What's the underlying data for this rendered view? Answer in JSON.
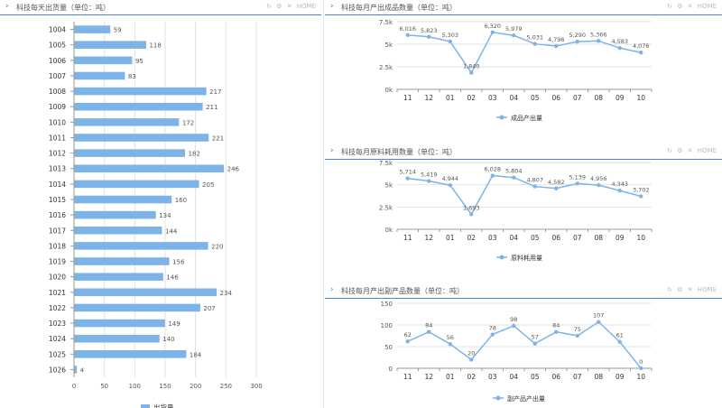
{
  "panels": {
    "daily": {
      "title": "科技每天出货量（单位：吨）",
      "tools": [
        "↻",
        "⚙",
        "✕",
        "HOME"
      ]
    },
    "products": {
      "title": "科技每月产出成品数量（单位：吨）",
      "tools": [
        "↻",
        "⚙",
        "✕",
        "HOME"
      ]
    },
    "materials": {
      "title": "科技每月原料耗用数量（单位：吨）",
      "tools": [
        "↻",
        "⚙",
        "✕",
        "HOME"
      ]
    },
    "byproducts": {
      "title": "科技每月产出副产品数量（单位：吨）",
      "tools": [
        "↻",
        "⚙",
        "✕",
        "HOME"
      ]
    }
  },
  "chart_data": [
    {
      "type": "bar",
      "orientation": "horizontal",
      "categories": [
        "1004",
        "1005",
        "1006",
        "1007",
        "1008",
        "1009",
        "1010",
        "1011",
        "1012",
        "1013",
        "1014",
        "1015",
        "1016",
        "1017",
        "1018",
        "1019",
        "1020",
        "1021",
        "1022",
        "1023",
        "1024",
        "1025",
        "1026"
      ],
      "values": [
        59,
        118,
        95,
        83,
        217,
        211,
        172,
        221,
        182,
        246,
        205,
        160,
        134,
        144,
        220,
        156,
        146,
        234,
        207,
        149,
        140,
        184,
        4
      ],
      "series_name": "出货量",
      "xlim": [
        0,
        300
      ],
      "xticks": [
        "0",
        "50",
        "100",
        "150",
        "200",
        "250",
        "300"
      ],
      "grid": true,
      "legend": "bottom",
      "color": "#7eb3e8"
    },
    {
      "type": "line",
      "categories": [
        "11",
        "12",
        "01",
        "02",
        "03",
        "04",
        "05",
        "06",
        "07",
        "08",
        "09",
        "10"
      ],
      "values": [
        6016,
        5823,
        5303,
        1840,
        6320,
        5979,
        5031,
        4796,
        5290,
        5366,
        4583,
        4076
      ],
      "labels": [
        "6,016",
        "5,823",
        "5,303",
        "1,840",
        "6,320",
        "5,979",
        "5,031",
        "4,796",
        "5,290",
        "5,366",
        "4,583",
        "4,076"
      ],
      "series_name": "成品产出量",
      "ylim": [
        0,
        7500
      ],
      "yticks": [
        "0k",
        "2.5k",
        "5k",
        "7.5k"
      ],
      "grid": true,
      "legend": "bottom",
      "color": "#7eb3e8"
    },
    {
      "type": "line",
      "categories": [
        "11",
        "12",
        "01",
        "02",
        "03",
        "04",
        "05",
        "06",
        "07",
        "08",
        "09",
        "10"
      ],
      "values": [
        5714,
        5419,
        4944,
        1693,
        6028,
        5804,
        4807,
        4582,
        5139,
        4956,
        4343,
        3702
      ],
      "labels": [
        "5,714",
        "5,419",
        "4,944",
        "1,693",
        "6,028",
        "5,804",
        "4,807",
        "4,582",
        "5,139",
        "4,956",
        "4,343",
        "3,702"
      ],
      "series_name": "原料耗用量",
      "ylim": [
        0,
        7500
      ],
      "yticks": [
        "0k",
        "2.5k",
        "5k",
        "7.5k"
      ],
      "grid": true,
      "legend": "bottom",
      "color": "#7eb3e8"
    },
    {
      "type": "line",
      "categories": [
        "11",
        "12",
        "01",
        "02",
        "03",
        "04",
        "05",
        "06",
        "07",
        "08",
        "09",
        "10"
      ],
      "values": [
        62,
        84,
        56,
        20,
        78,
        98,
        57,
        84,
        75,
        107,
        61,
        0
      ],
      "labels": [
        "62",
        "84",
        "56",
        "20",
        "78",
        "98",
        "57",
        "84",
        "75",
        "107",
        "61",
        "0"
      ],
      "series_name": "副产品产出量",
      "ylim": [
        0,
        150
      ],
      "yticks": [
        "0",
        "50",
        "100",
        "150"
      ],
      "grid": true,
      "legend": "bottom",
      "color": "#7eb3e8"
    }
  ]
}
